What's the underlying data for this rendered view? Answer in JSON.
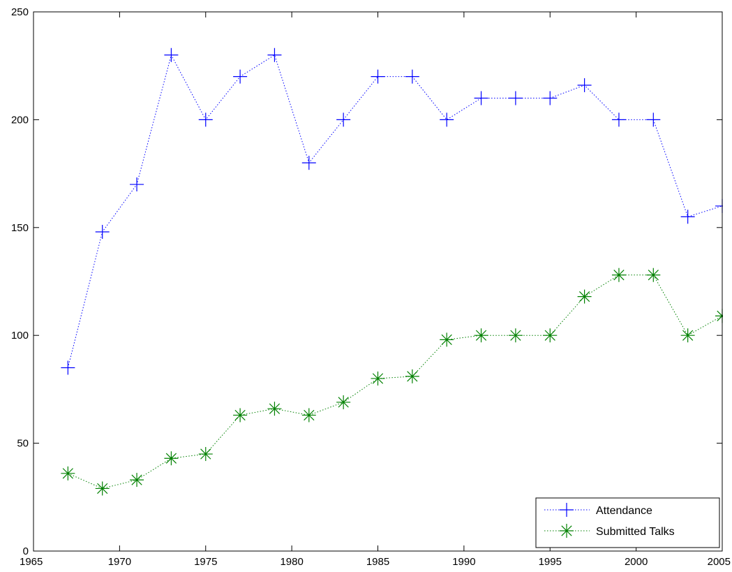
{
  "chart_data": {
    "type": "line",
    "title": "",
    "xlabel": "",
    "ylabel": "",
    "xlim": [
      1965,
      2005
    ],
    "ylim": [
      0,
      250
    ],
    "xticks": [
      1965,
      1970,
      1975,
      1980,
      1985,
      1990,
      1995,
      2000,
      2005
    ],
    "yticks": [
      0,
      50,
      100,
      150,
      200,
      250
    ],
    "grid": false,
    "legend_position": "bottom-right",
    "x": [
      1967,
      1969,
      1971,
      1973,
      1975,
      1977,
      1979,
      1981,
      1983,
      1985,
      1987,
      1989,
      1991,
      1993,
      1995,
      1997,
      1999,
      2001,
      2003,
      2005
    ],
    "series": [
      {
        "name": "Attendance",
        "color": "#0000ff",
        "marker": "plus",
        "line_style": "dotted",
        "values": [
          85,
          148,
          170,
          230,
          200,
          220,
          230,
          180,
          200,
          220,
          220,
          200,
          210,
          210,
          210,
          216,
          200,
          200,
          155,
          160
        ]
      },
      {
        "name": "Submitted Talks",
        "color": "#008000",
        "marker": "asterisk",
        "line_style": "dotted",
        "values": [
          36,
          29,
          33,
          43,
          45,
          63,
          66,
          63,
          69,
          80,
          81,
          98,
          100,
          100,
          100,
          118,
          128,
          128,
          100,
          109
        ]
      }
    ]
  }
}
